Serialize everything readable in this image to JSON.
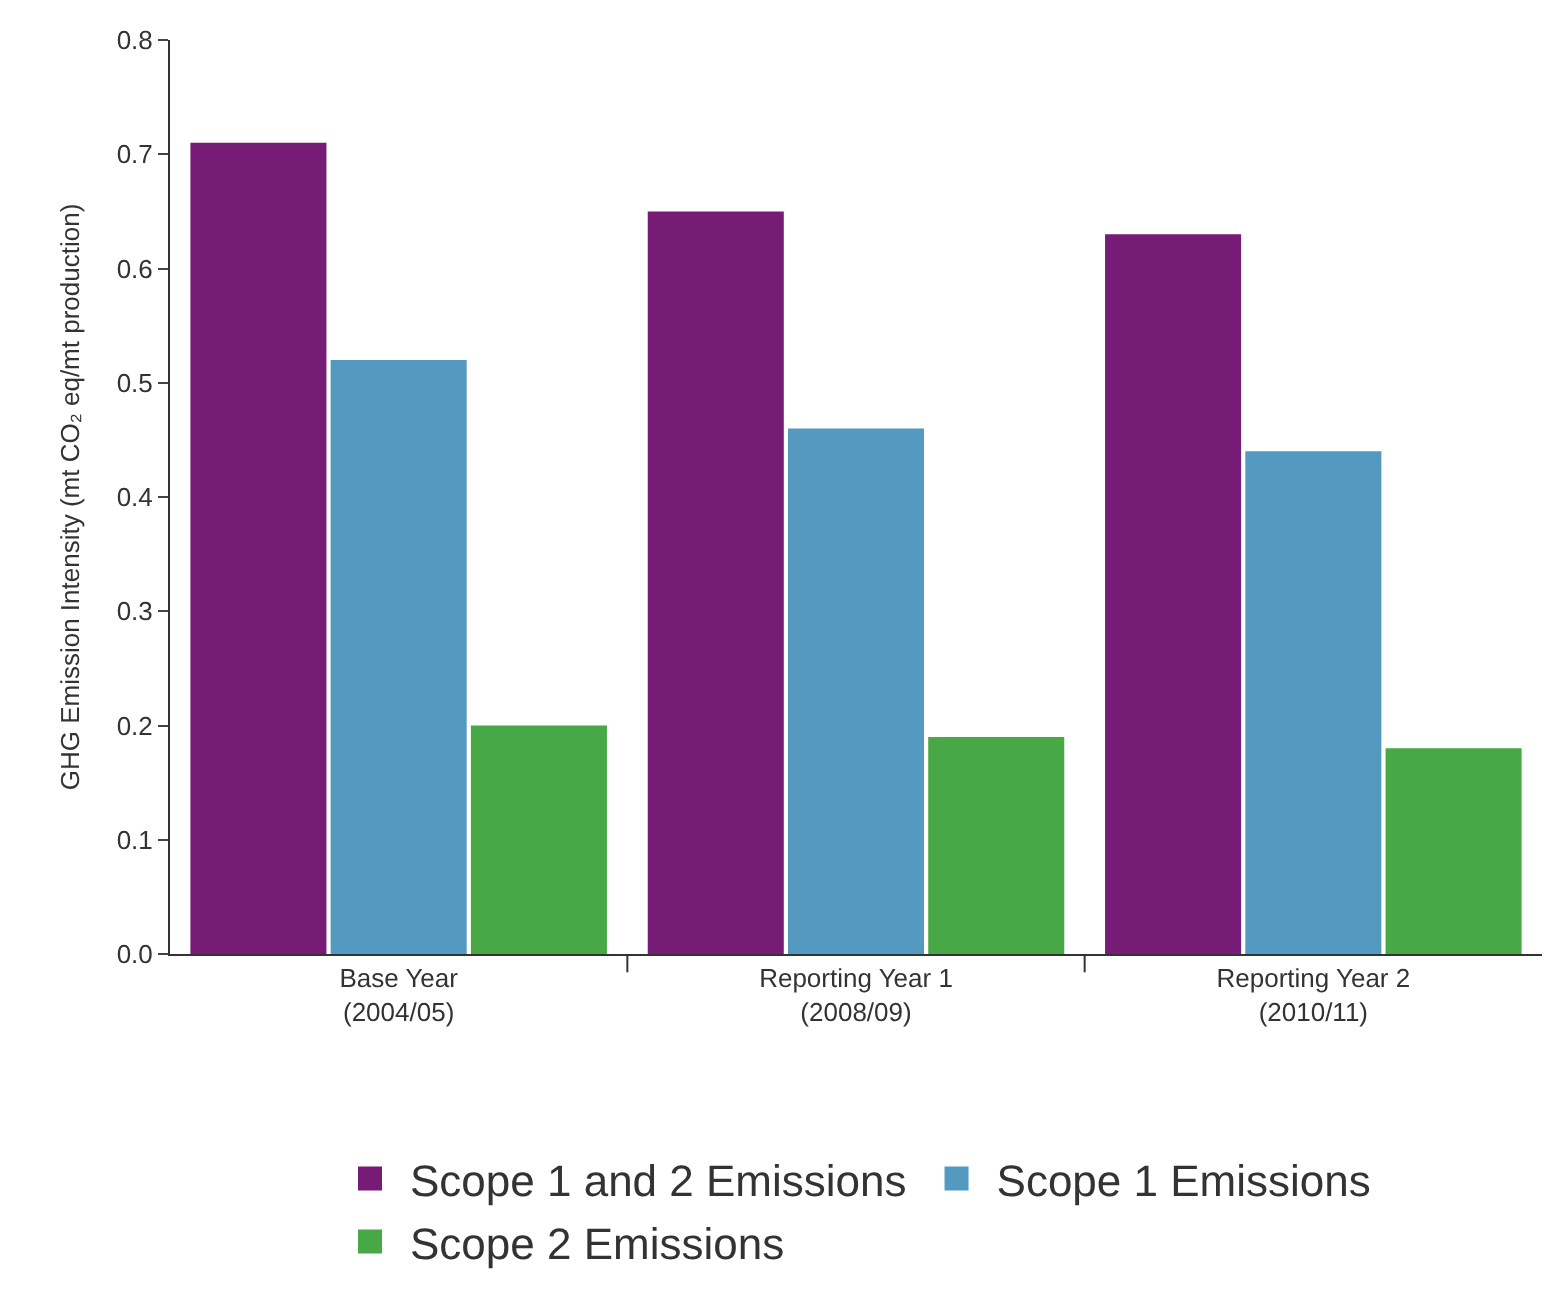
{
  "chart_data": {
    "type": "bar",
    "ylabel": "GHG Emission Intensity (mt CO₂ eq/mt production)",
    "categories": [
      "Base Year\n(2004/05)",
      "Reporting Year 1\n(2008/09)",
      "Reporting Year 2\n(2010/11)"
    ],
    "series": [
      {
        "name": "Scope 1 and 2 Emissions",
        "color": "#761b76",
        "values": [
          0.71,
          0.65,
          0.63
        ]
      },
      {
        "name": "Scope 1 Emissions",
        "color": "#5399c0",
        "values": [
          0.52,
          0.46,
          0.44
        ]
      },
      {
        "name": "Scope 2 Emissions",
        "color": "#48a846",
        "values": [
          0.2,
          0.19,
          0.18
        ]
      }
    ],
    "ylim": [
      0,
      0.8
    ],
    "yticks": [
      {
        "value": 0,
        "label": "0.0"
      },
      0.1,
      0.2,
      0.3,
      0.4,
      0.5,
      0.6,
      0.7,
      0.8
    ],
    "legend": "bottom"
  }
}
